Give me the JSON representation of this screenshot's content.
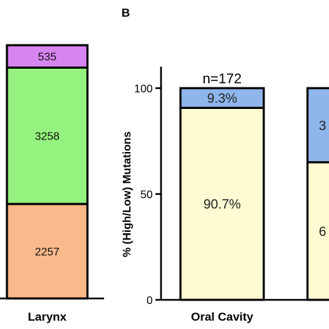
{
  "chart_data": [
    {
      "type": "bar",
      "stacked": true,
      "categories": [
        "Larynx"
      ],
      "series": [
        {
          "values": [
            2257
          ],
          "color": "#f9b98a"
        },
        {
          "values": [
            3258
          ],
          "color": "#95f27e"
        },
        {
          "values": [
            535
          ],
          "color": "#d784f0"
        }
      ],
      "value_labels": [
        "2257",
        "3258",
        "535"
      ],
      "ylim": [
        0,
        6400
      ]
    },
    {
      "type": "bar",
      "stacked": true,
      "panel_letter": "B",
      "title": "",
      "xlabel": "",
      "ylabel": "% (High/Low) Mutations",
      "categories": [
        "Oral Cavity",
        ""
      ],
      "top_labels": [
        "n=172",
        ""
      ],
      "series": [
        {
          "values": [
            90.7,
            65
          ],
          "color": "#fefad2",
          "labels": [
            "90.7%",
            "6"
          ]
        },
        {
          "values": [
            9.3,
            35
          ],
          "color": "#8fb6ec",
          "labels": [
            "9.3%",
            "3"
          ]
        }
      ],
      "yticks": [
        0,
        50,
        100
      ],
      "ylim": [
        0,
        100
      ],
      "grid": false
    }
  ]
}
